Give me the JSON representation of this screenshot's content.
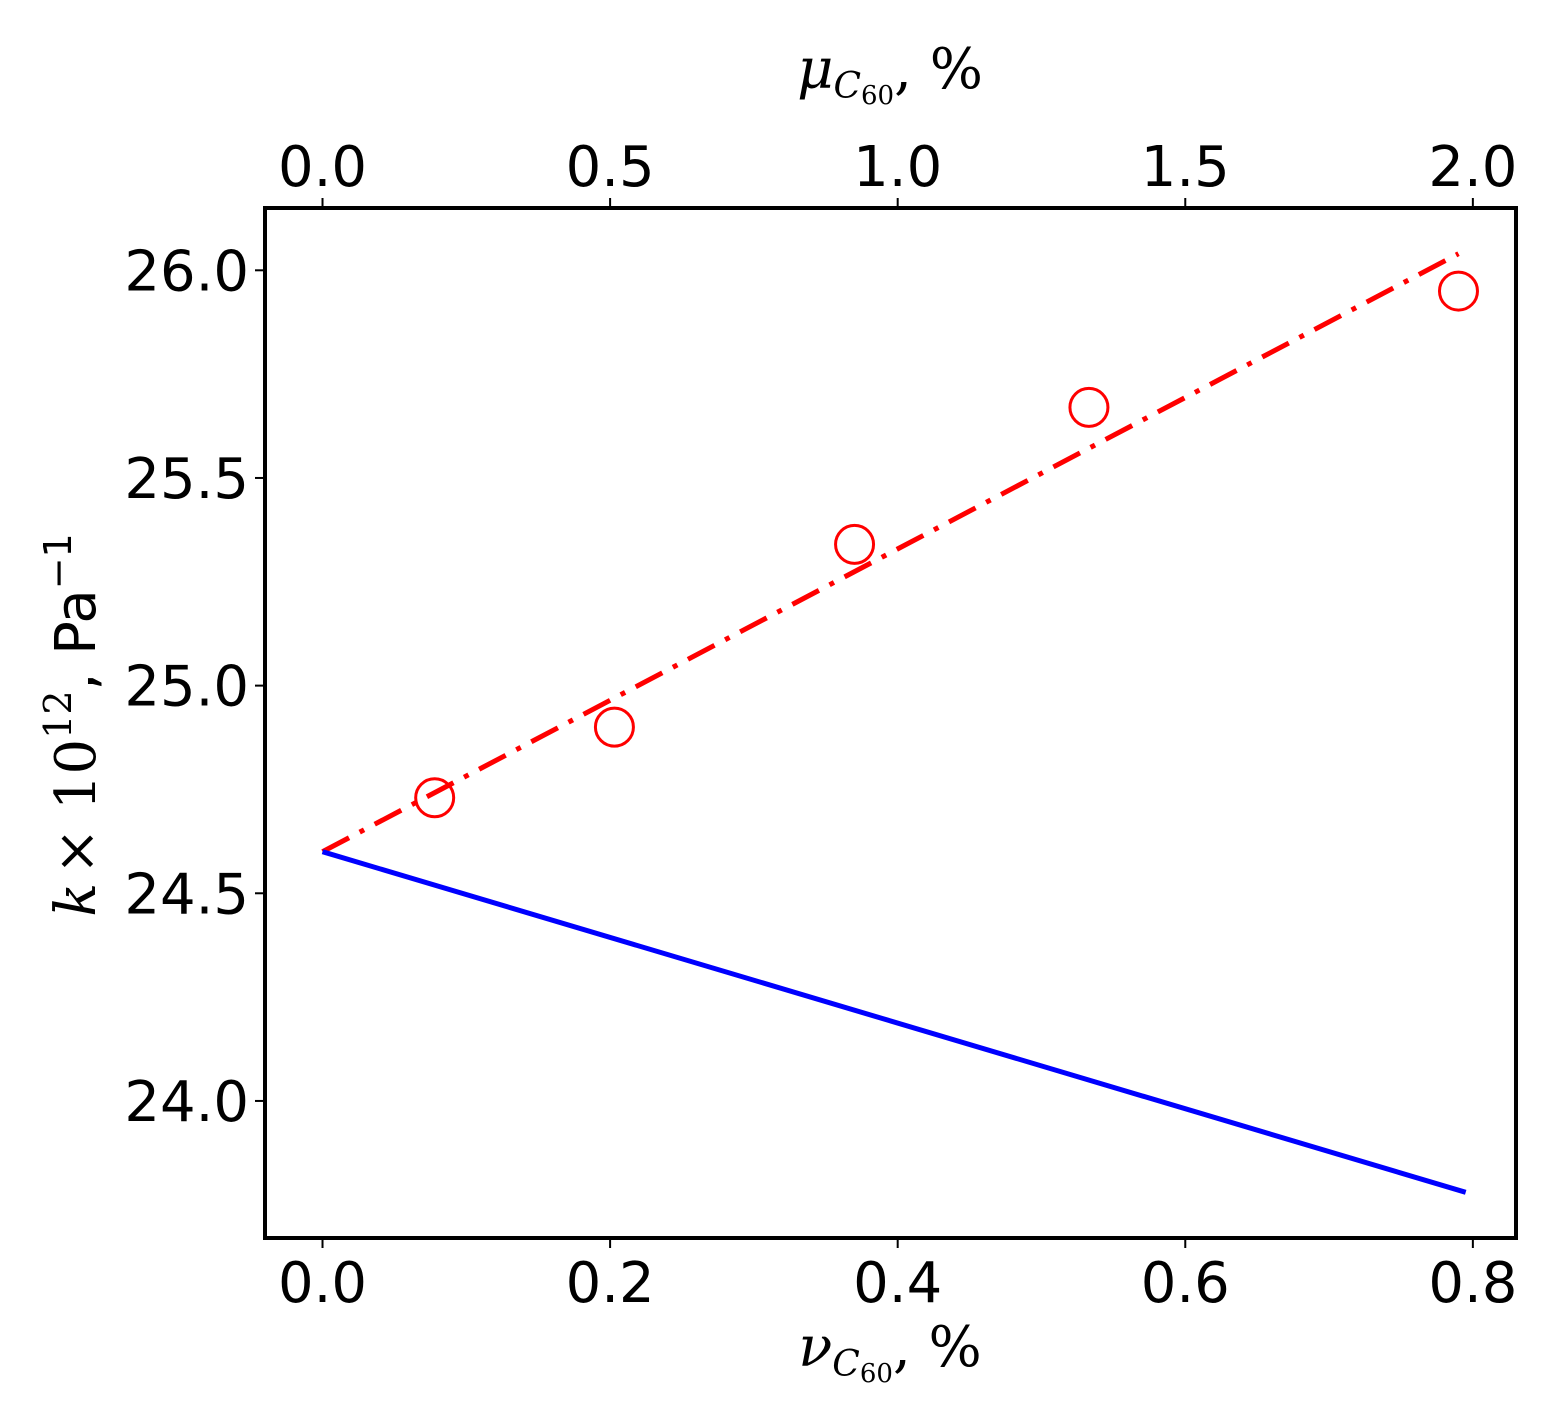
{
  "chart_data": {
    "type": "line",
    "x_axis": {
      "label_symbol": "ν",
      "label_subscript": "C",
      "label_subscript_num": "60",
      "label_suffix": ", %",
      "range": [
        -0.04,
        0.83
      ],
      "ticks": [
        0.0,
        0.2,
        0.4,
        0.6,
        0.8
      ],
      "tick_labels": [
        "0.0",
        "0.2",
        "0.4",
        "0.6",
        "0.8"
      ]
    },
    "x_axis_top": {
      "label_symbol": "μ",
      "label_subscript": "C",
      "label_subscript_num": "60",
      "label_suffix": ", %",
      "ticks_at_bottom_units": [
        0.0,
        0.2,
        0.4,
        0.6,
        0.8
      ],
      "tick_labels": [
        "0.0",
        "0.5",
        "1.0",
        "1.5",
        "2.0"
      ]
    },
    "y_axis": {
      "label_k": "k",
      "label_times": "× 10",
      "label_exp": "12",
      "label_unit": ", Pa",
      "label_unit_exp": "−1",
      "range": [
        23.67,
        26.15
      ],
      "ticks": [
        24.0,
        24.5,
        25.0,
        25.5,
        26.0
      ],
      "tick_labels": [
        "24.0",
        "24.5",
        "25.0",
        "25.5",
        "26.0"
      ]
    },
    "grid": false,
    "series": [
      {
        "style": "dashdot",
        "color": "#ff0000",
        "x": [
          0.0,
          0.79
        ],
        "y": [
          24.6,
          26.04
        ]
      },
      {
        "style": "solid",
        "color": "#0000ff",
        "x": [
          0.0,
          0.795
        ],
        "y": [
          24.6,
          23.78
        ]
      },
      {
        "style": "markers-open-circle",
        "color": "#ff0000",
        "x": [
          0.078,
          0.203,
          0.37,
          0.533,
          0.79
        ],
        "y": [
          24.73,
          24.9,
          25.34,
          25.67,
          25.95
        ]
      }
    ]
  }
}
